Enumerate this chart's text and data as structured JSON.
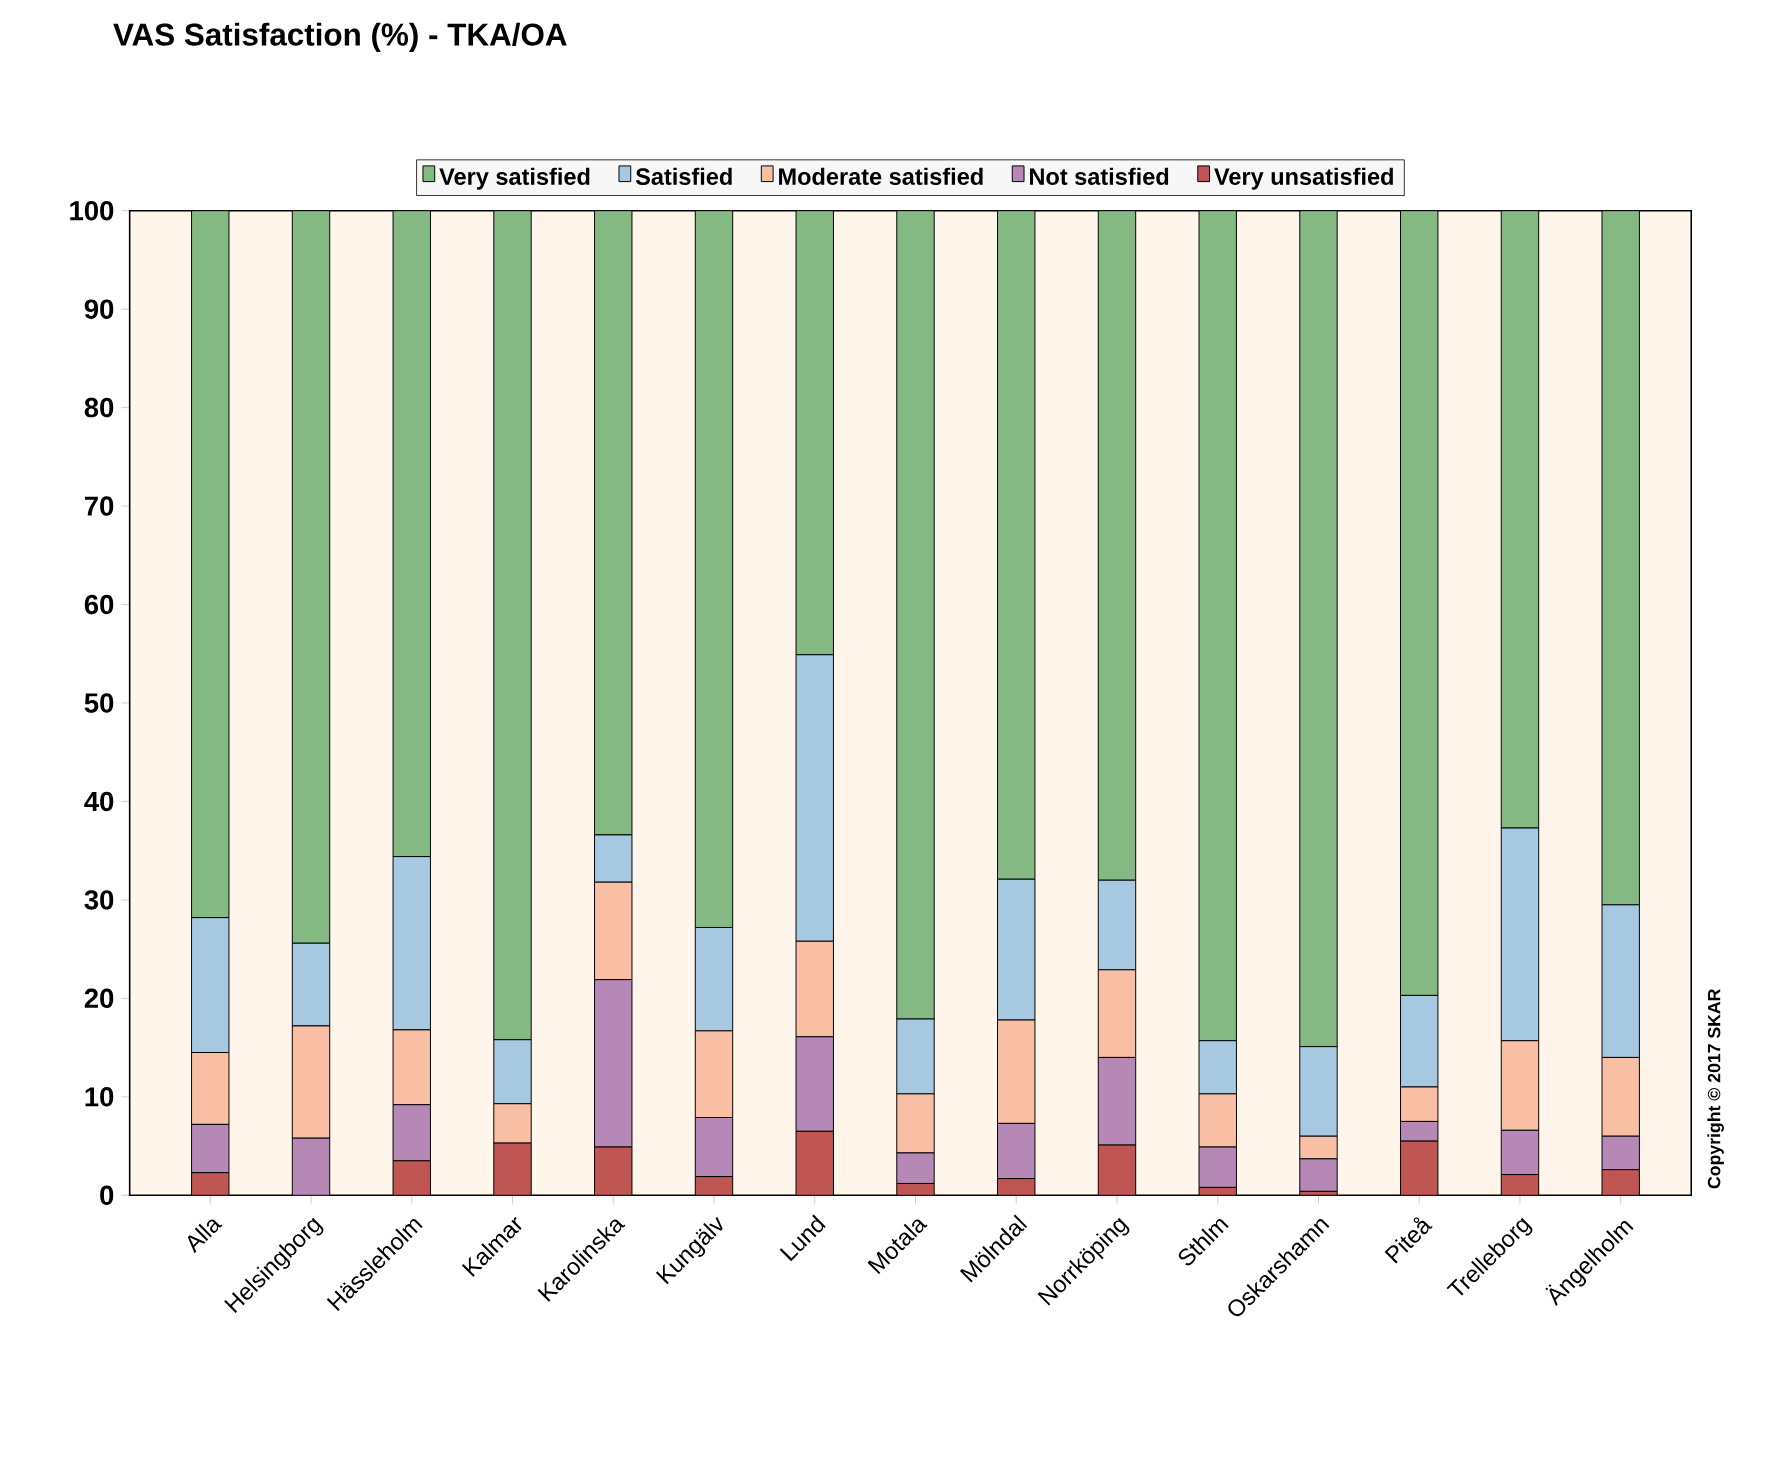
{
  "chart_data": {
    "type": "bar",
    "title": "VAS Satisfaction (%) - TKA/OA",
    "categories": [
      "Alla",
      "Helsingborg",
      "Hässleholm",
      "Kalmar",
      "Karolinska",
      "Kungälv",
      "Lund",
      "Motala",
      "Mölndal",
      "Norrköping",
      "Sthlm",
      "Oskarshamn",
      "Piteå",
      "Trelleborg",
      "Ängelholm"
    ],
    "series": [
      {
        "name": "Very unsatisfied",
        "color": "#c05653",
        "values": [
          2.3,
          0,
          3.5,
          5.3,
          4.9,
          1.9,
          6.5,
          1.2,
          1.7,
          5.1,
          0.8,
          0.4,
          5.5,
          2.1,
          2.6
        ]
      },
      {
        "name": "Not satisfied",
        "color": "#b688b6",
        "values": [
          4.9,
          5.8,
          5.7,
          0,
          17.0,
          6.0,
          9.6,
          3.1,
          5.6,
          8.9,
          4.1,
          3.3,
          2.0,
          4.5,
          3.4
        ]
      },
      {
        "name": "Moderate satisfied",
        "color": "#f9bfa4",
        "values": [
          7.3,
          11.4,
          7.6,
          4.0,
          9.9,
          8.8,
          9.7,
          6.0,
          10.5,
          8.9,
          5.4,
          2.3,
          3.5,
          9.1,
          8.0
        ]
      },
      {
        "name": "Satisfied",
        "color": "#a6c8e0",
        "values": [
          13.7,
          8.4,
          17.6,
          6.5,
          4.8,
          10.5,
          29.1,
          7.6,
          14.3,
          9.1,
          5.4,
          9.1,
          9.3,
          21.6,
          15.5
        ]
      },
      {
        "name": "Very satisfied",
        "color": "#85b984",
        "values": [
          71.8,
          74.4,
          65.6,
          84.2,
          63.4,
          72.8,
          45.1,
          82.1,
          67.9,
          68.0,
          84.3,
          84.9,
          79.7,
          62.7,
          70.5
        ]
      }
    ],
    "stacked": true,
    "ylim": [
      0,
      100
    ],
    "yticks": [
      0,
      10,
      20,
      30,
      40,
      50,
      60,
      70,
      80,
      90,
      100
    ],
    "legend": "top",
    "annotations": [
      "Copyright © 2017 SKAR"
    ]
  }
}
